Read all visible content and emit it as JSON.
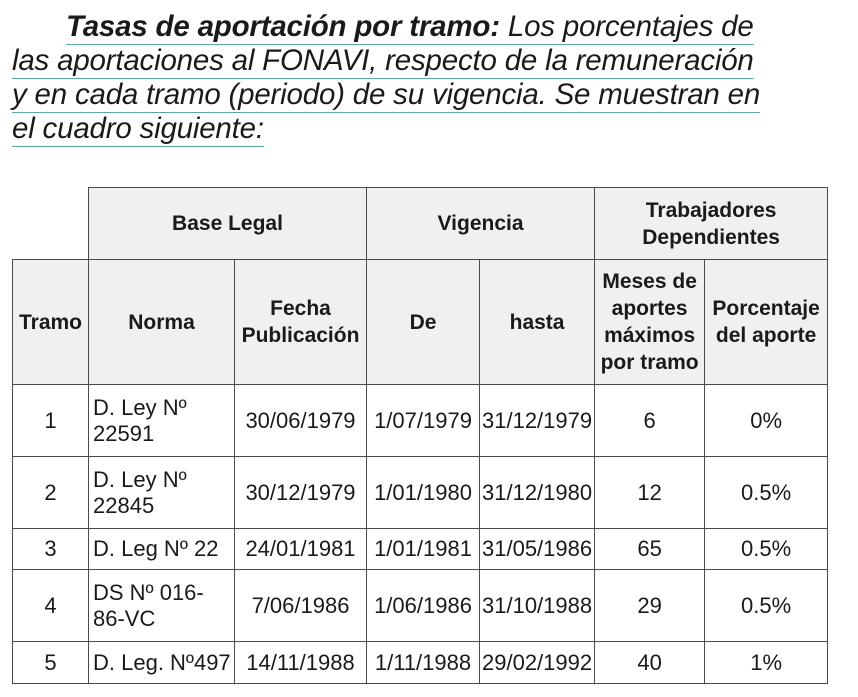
{
  "intro": {
    "title": "Tasas de aportación por tramo:",
    "line1_rest": " Los porcentajes de",
    "line2": "las aportaciones al FONAVI, respecto de la remuneración",
    "line3": "y en cada tramo (periodo) de su vigencia. Se muestran en",
    "line4": "el cuadro siguiente:"
  },
  "table": {
    "group_headers": {
      "base_legal": "Base Legal",
      "vigencia": "Vigencia",
      "trabajadores_line1": "Trabajadores",
      "trabajadores_line2": "Dependientes"
    },
    "columns": {
      "tramo": "Tramo",
      "norma": "Norma",
      "fecha_line1": "Fecha",
      "fecha_line2": "Publicación",
      "de": "De",
      "hasta": "hasta",
      "meses_line1": "Meses de",
      "meses_line2": "aportes",
      "meses_line3": "máximos",
      "meses_line4": "por tramo",
      "porcentaje_line1": "Porcentaje",
      "porcentaje_line2": "del aporte"
    },
    "rows": [
      {
        "tramo": "1",
        "norma_line1": "D. Ley Nº",
        "norma_line2": "22591",
        "fecha": "30/06/1979",
        "de": "1/07/1979",
        "hasta": "31/12/1979",
        "meses": "6",
        "porcentaje": "0%"
      },
      {
        "tramo": "2",
        "norma_line1": "D. Ley Nº",
        "norma_line2": "22845",
        "fecha": "30/12/1979",
        "de": "1/01/1980",
        "hasta": "31/12/1980",
        "meses": "12",
        "porcentaje": "0.5%"
      },
      {
        "tramo": "3",
        "norma_line1": "D. Leg Nº 22",
        "norma_line2": "",
        "fecha": "24/01/1981",
        "de": "1/01/1981",
        "hasta": "31/05/1986",
        "meses": "65",
        "porcentaje": "0.5%"
      },
      {
        "tramo": "4",
        "norma_line1": "DS Nº 016-",
        "norma_line2": "86-VC",
        "fecha": "7/06/1986",
        "de": "1/06/1986",
        "hasta": "31/10/1988",
        "meses": "29",
        "porcentaje": "0.5%"
      },
      {
        "tramo": "5",
        "norma_line1": "D. Leg. Nº497",
        "norma_line2": "",
        "fecha": "14/11/1988",
        "de": "1/11/1988",
        "hasta": "29/02/1992",
        "meses": "40",
        "porcentaje": "1%"
      }
    ]
  }
}
